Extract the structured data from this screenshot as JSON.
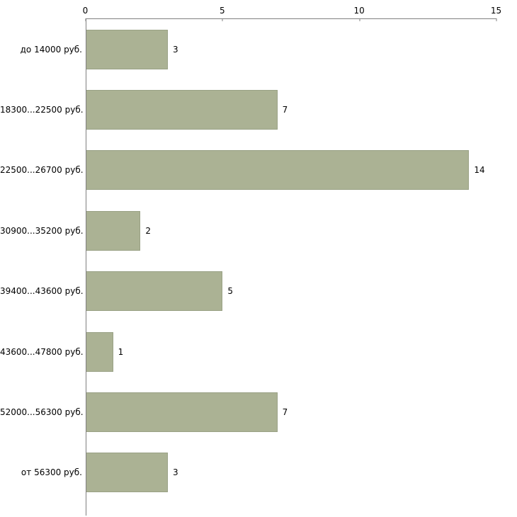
{
  "chart_data": {
    "type": "bar",
    "orientation": "horizontal",
    "title": "",
    "xlabel": "",
    "ylabel": "",
    "categories": [
      "до 14000 руб.",
      "18300...22500 руб.",
      "22500...26700 руб.",
      "30900...35200 руб.",
      "39400...43600 руб.",
      "43600...47800 руб.",
      "52000...56300 руб.",
      "от 56300 руб."
    ],
    "values": [
      3,
      7,
      14,
      2,
      5,
      1,
      7,
      3
    ],
    "xlim": [
      0,
      15
    ],
    "x_ticks": [
      0,
      5,
      10,
      15
    ],
    "grid": "off",
    "legend": "none",
    "bar_color": "#abb294",
    "bar_border_color": "#99a185",
    "axis_color": "#808080",
    "text_color": "#000000",
    "background_color": "#ffffff"
  }
}
